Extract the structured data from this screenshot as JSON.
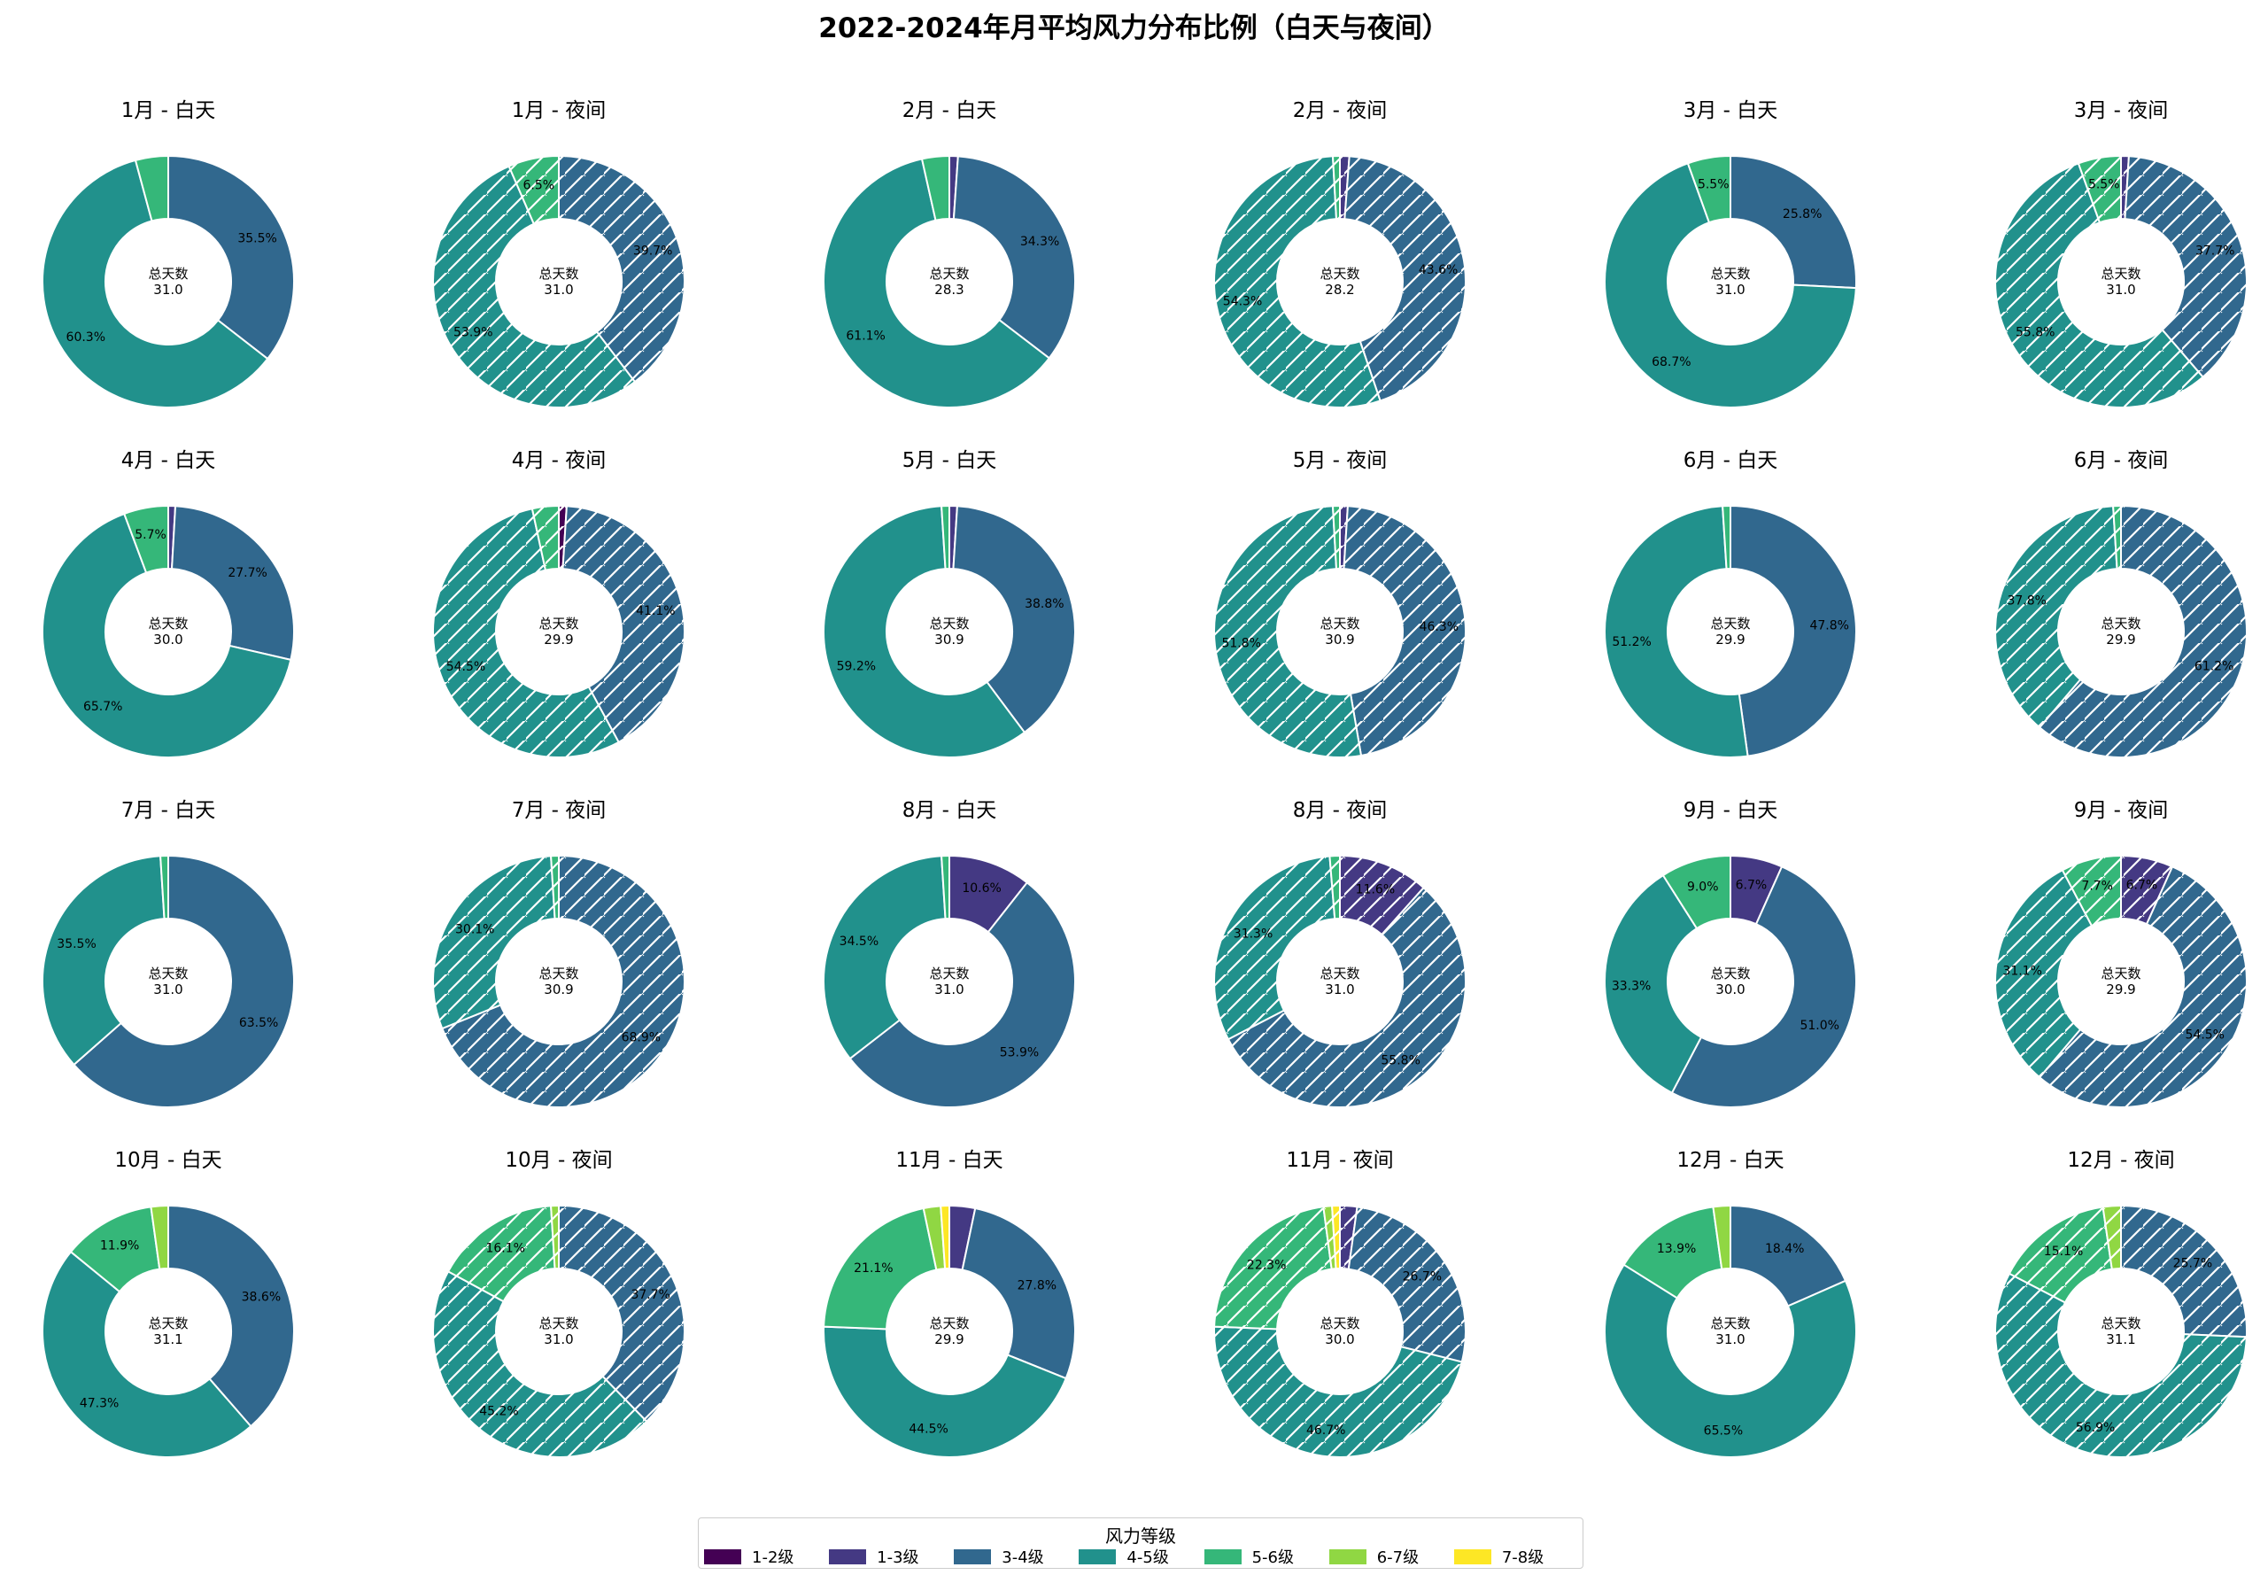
{
  "title": "2022-2024年月平均风力分布比例（白天与夜间）",
  "center_label": "总天数",
  "legend": {
    "title": "风力等级",
    "items": [
      {
        "label": "1-2级",
        "color": "#440154"
      },
      {
        "label": "1-3级",
        "color": "#443983"
      },
      {
        "label": "3-4级",
        "color": "#31688e"
      },
      {
        "label": "4-5级",
        "color": "#21918c"
      },
      {
        "label": "5-6级",
        "color": "#35b779"
      },
      {
        "label": "6-7级",
        "color": "#90d743"
      },
      {
        "label": "7-8级",
        "color": "#fde725"
      }
    ]
  },
  "chart_data": {
    "type": "donut",
    "categories": [
      "1-2级",
      "1-3级",
      "3-4级",
      "4-5级",
      "5-6级",
      "6-7级",
      "7-8级"
    ],
    "night_style": "hatched",
    "charts": [
      {
        "title": "1月 - 白天",
        "total": "31.0",
        "shares": [
          0,
          0,
          35.5,
          60.3,
          4.2,
          0,
          0
        ],
        "labels": [
          "",
          "",
          "35.5%",
          "60.3%",
          "",
          "",
          ""
        ]
      },
      {
        "title": "1月 - 夜间",
        "night": true,
        "total": "31.0",
        "shares": [
          0,
          0,
          39.7,
          53.9,
          6.5,
          0,
          0
        ],
        "labels": [
          "",
          "",
          "39.7%",
          "53.9%",
          "6.5%",
          "",
          ""
        ]
      },
      {
        "title": "2月 - 白天",
        "total": "28.3",
        "shares": [
          0,
          1.1,
          34.3,
          61.1,
          3.5,
          0,
          0
        ],
        "labels": [
          "",
          "",
          "34.3%",
          "61.1%",
          "",
          "",
          ""
        ]
      },
      {
        "title": "2月 - 夜间",
        "night": true,
        "total": "28.2",
        "shares": [
          0,
          1.2,
          43.6,
          54.3,
          0.9,
          0,
          0
        ],
        "labels": [
          "",
          "",
          "43.6%",
          "54.3%",
          "",
          "",
          ""
        ]
      },
      {
        "title": "3月 - 白天",
        "total": "31.0",
        "shares": [
          0,
          0,
          25.8,
          68.7,
          5.5,
          0,
          0
        ],
        "labels": [
          "",
          "",
          "25.8%",
          "68.7%",
          "5.5%",
          "",
          ""
        ]
      },
      {
        "title": "3月 - 夜间",
        "night": true,
        "total": "31.0",
        "shares": [
          0,
          1.0,
          37.7,
          55.8,
          5.5,
          0,
          0
        ],
        "labels": [
          "",
          "",
          "37.7%",
          "55.8%",
          "5.5%",
          "",
          ""
        ]
      },
      {
        "title": "4月 - 白天",
        "total": "30.0",
        "shares": [
          0,
          0.9,
          27.7,
          65.7,
          5.7,
          0,
          0
        ],
        "labels": [
          "",
          "",
          "27.7%",
          "65.7%",
          "5.7%",
          "",
          ""
        ]
      },
      {
        "title": "4月 - 夜间",
        "night": true,
        "total": "29.9",
        "shares": [
          1.0,
          0,
          41.1,
          54.5,
          3.4,
          0,
          0
        ],
        "labels": [
          "",
          "",
          "41.1%",
          "54.5%",
          "",
          "",
          ""
        ]
      },
      {
        "title": "5月 - 白天",
        "total": "30.9",
        "shares": [
          0,
          1.0,
          38.8,
          59.2,
          1.0,
          0,
          0
        ],
        "labels": [
          "",
          "",
          "38.8%",
          "59.2%",
          "",
          "",
          ""
        ]
      },
      {
        "title": "5月 - 夜间",
        "night": true,
        "total": "30.9",
        "shares": [
          0,
          1.0,
          46.3,
          51.8,
          0.9,
          0,
          0
        ],
        "labels": [
          "",
          "",
          "46.3%",
          "51.8%",
          "",
          "",
          ""
        ]
      },
      {
        "title": "6月 - 白天",
        "total": "29.9",
        "shares": [
          0,
          0,
          47.8,
          51.2,
          1.0,
          0,
          0
        ],
        "labels": [
          "",
          "",
          "47.8%",
          "51.2%",
          "",
          "",
          ""
        ]
      },
      {
        "title": "6月 - 夜间",
        "night": true,
        "total": "29.9",
        "shares": [
          0,
          0,
          61.2,
          37.8,
          1.0,
          0,
          0
        ],
        "labels": [
          "",
          "",
          "61.2%",
          "37.8%",
          "",
          "",
          ""
        ]
      },
      {
        "title": "7月 - 白天",
        "total": "31.0",
        "shares": [
          0,
          0,
          63.5,
          35.5,
          1.0,
          0,
          0
        ],
        "labels": [
          "",
          "",
          "63.5%",
          "35.5%",
          "",
          "",
          ""
        ]
      },
      {
        "title": "7月 - 夜间",
        "night": true,
        "total": "30.9",
        "shares": [
          0,
          0,
          68.9,
          30.1,
          1.0,
          0,
          0
        ],
        "labels": [
          "",
          "",
          "68.9%",
          "30.1%",
          "",
          "",
          ""
        ]
      },
      {
        "title": "8月 - 白天",
        "total": "31.0",
        "shares": [
          0,
          10.6,
          53.9,
          34.5,
          1.0,
          0,
          0
        ],
        "labels": [
          "",
          "10.6%",
          "53.9%",
          "34.5%",
          "",
          "",
          ""
        ]
      },
      {
        "title": "8月 - 夜间",
        "night": true,
        "total": "31.0",
        "shares": [
          0,
          11.6,
          55.8,
          31.3,
          1.3,
          0,
          0
        ],
        "labels": [
          "",
          "11.6%",
          "55.8%",
          "31.3%",
          "",
          "",
          ""
        ]
      },
      {
        "title": "9月 - 白天",
        "total": "30.0",
        "shares": [
          0,
          6.7,
          51.0,
          33.3,
          9.0,
          0,
          0
        ],
        "labels": [
          "",
          "6.7%",
          "51.0%",
          "33.3%",
          "9.0%",
          "",
          ""
        ]
      },
      {
        "title": "9月 - 夜间",
        "night": true,
        "total": "29.9",
        "shares": [
          0,
          6.7,
          54.5,
          31.1,
          7.7,
          0,
          0
        ],
        "labels": [
          "",
          "6.7%",
          "54.5%",
          "31.1%",
          "7.7%",
          "",
          ""
        ]
      },
      {
        "title": "10月 - 白天",
        "total": "31.1",
        "shares": [
          0,
          0,
          38.6,
          47.3,
          11.9,
          2.2,
          0
        ],
        "labels": [
          "",
          "",
          "38.6%",
          "47.3%",
          "11.9%",
          "",
          ""
        ]
      },
      {
        "title": "10月 - 夜间",
        "night": true,
        "total": "31.0",
        "shares": [
          0,
          0,
          37.7,
          45.2,
          16.1,
          1.0,
          0
        ],
        "labels": [
          "",
          "",
          "37.7%",
          "45.2%",
          "16.1%",
          "",
          ""
        ]
      },
      {
        "title": "11月 - 白天",
        "total": "29.9",
        "shares": [
          0,
          3.3,
          27.8,
          44.5,
          21.1,
          2.2,
          1.1
        ],
        "labels": [
          "",
          "",
          "27.8%",
          "44.5%",
          "21.1%",
          "",
          ""
        ]
      },
      {
        "title": "11月 - 夜间",
        "night": true,
        "total": "30.0",
        "shares": [
          0,
          2.2,
          26.7,
          46.7,
          22.3,
          1.1,
          1.0
        ],
        "labels": [
          "",
          "",
          "26.7%",
          "46.7%",
          "22.3%",
          "",
          ""
        ]
      },
      {
        "title": "12月 - 白天",
        "total": "31.0",
        "shares": [
          0,
          0,
          18.4,
          65.5,
          13.9,
          2.2,
          0
        ],
        "labels": [
          "",
          "",
          "18.4%",
          "65.5%",
          "13.9%",
          "",
          ""
        ]
      },
      {
        "title": "12月 - 夜间",
        "night": true,
        "total": "31.1",
        "shares": [
          0,
          0,
          25.7,
          56.9,
          15.1,
          2.3,
          0
        ],
        "labels": [
          "",
          "",
          "25.7%",
          "56.9%",
          "15.1%",
          "",
          ""
        ]
      }
    ]
  }
}
